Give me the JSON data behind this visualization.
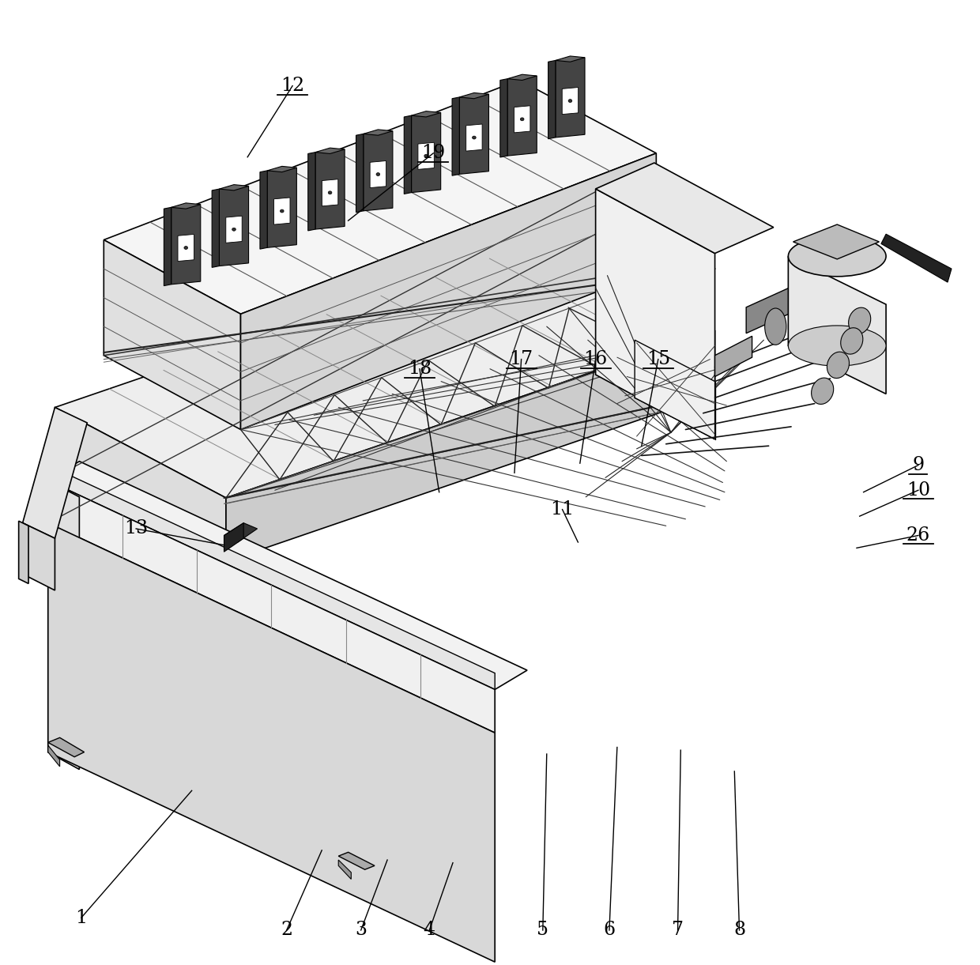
{
  "figure_width": 12.4,
  "figure_height": 12.21,
  "dpi": 100,
  "bg": "#ffffff",
  "lc": "#000000",
  "label_positions": {
    "1": [
      0.082,
      0.952,
      0.195,
      0.82
    ],
    "2": [
      0.292,
      0.965,
      0.328,
      0.882
    ],
    "3": [
      0.368,
      0.965,
      0.395,
      0.892
    ],
    "4": [
      0.438,
      0.965,
      0.462,
      0.895
    ],
    "5": [
      0.554,
      0.965,
      0.558,
      0.782
    ],
    "6": [
      0.622,
      0.965,
      0.63,
      0.775
    ],
    "7": [
      0.692,
      0.965,
      0.695,
      0.778
    ],
    "8": [
      0.755,
      0.965,
      0.75,
      0.8
    ],
    "9": [
      0.938,
      0.482,
      0.882,
      0.51
    ],
    "10": [
      0.938,
      0.508,
      0.878,
      0.535
    ],
    "11": [
      0.574,
      0.528,
      0.59,
      0.562
    ],
    "12": [
      0.298,
      0.088,
      0.252,
      0.162
    ],
    "13": [
      0.138,
      0.548,
      0.228,
      0.565
    ],
    "15": [
      0.672,
      0.372,
      0.655,
      0.462
    ],
    "16": [
      0.608,
      0.372,
      0.592,
      0.48
    ],
    "17": [
      0.532,
      0.372,
      0.525,
      0.49
    ],
    "18": [
      0.428,
      0.382,
      0.448,
      0.51
    ],
    "19": [
      0.442,
      0.158,
      0.355,
      0.228
    ],
    "26": [
      0.938,
      0.555,
      0.875,
      0.568
    ]
  },
  "underlined": [
    "9",
    "10",
    "12",
    "15",
    "16",
    "17",
    "18",
    "19",
    "26"
  ],
  "font_size": 17
}
